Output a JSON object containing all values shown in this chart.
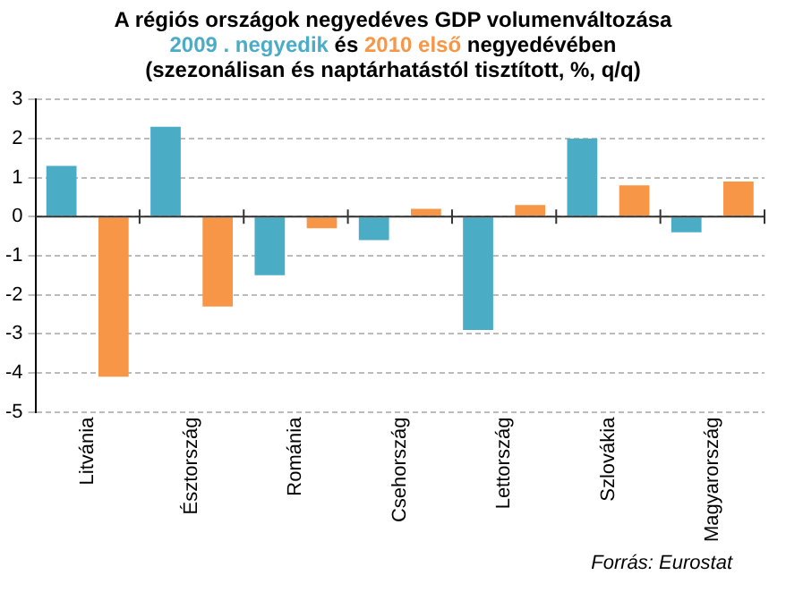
{
  "chart_data": {
    "type": "bar",
    "title": "A régiós országok negyedéves GDP volumenváltozása",
    "subtitle": "(szezonálisan és naptárhatástól tisztított, %, q/q)",
    "categories": [
      "Litvánia",
      "Észtország",
      "Románia",
      "Csehország",
      "Lettország",
      "Szlovákia",
      "Magyarország"
    ],
    "series": [
      {
        "name": "2009 . negyedik",
        "color": "#4bacc6",
        "values": [
          1.3,
          2.3,
          -1.5,
          -0.6,
          -2.9,
          2.0,
          -0.4
        ]
      },
      {
        "name": "2010 első",
        "color": "#f79646",
        "values": [
          -4.1,
          -2.3,
          -0.3,
          0.2,
          0.3,
          0.8,
          0.9
        ]
      }
    ],
    "ylim": [
      -5,
      3
    ],
    "yticks": [
      -5,
      -4,
      -3,
      -2,
      -1,
      0,
      1,
      2,
      3
    ],
    "grid": "y",
    "legend": false,
    "annotations": [
      "és",
      "negyedévében",
      "Forrás: Eurostat"
    ]
  }
}
